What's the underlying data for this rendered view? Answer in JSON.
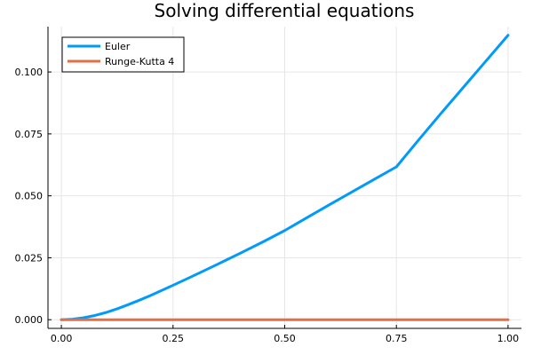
{
  "chart_data": {
    "type": "line",
    "title": "Solving differential equations",
    "xlabel": "",
    "ylabel": "",
    "xlim": [
      -0.03,
      1.03
    ],
    "ylim": [
      -0.0035,
      0.1183
    ],
    "xticks": [
      0.0,
      0.25,
      0.5,
      0.75,
      1.0
    ],
    "xtick_labels": [
      "0.00",
      "0.25",
      "0.50",
      "0.75",
      "1.00"
    ],
    "yticks": [
      0.0,
      0.025,
      0.05,
      0.075,
      0.1
    ],
    "ytick_labels": [
      "0.000",
      "0.025",
      "0.050",
      "0.075",
      "0.100"
    ],
    "grid": true,
    "legend": "top-left",
    "series": [
      {
        "name": "Euler",
        "color": "#009AFA",
        "x": [
          0.0,
          0.025,
          0.05,
          0.075,
          0.1,
          0.125,
          0.15,
          0.175,
          0.2,
          0.25,
          0.3,
          0.35,
          0.4,
          0.45,
          0.5,
          0.55,
          0.6,
          0.65,
          0.7,
          0.75,
          0.8,
          0.85,
          0.9,
          0.95,
          1.0
        ],
        "y": [
          0.0,
          0.0002,
          0.0008,
          0.0017,
          0.0029,
          0.0044,
          0.0061,
          0.0079,
          0.0098,
          0.0139,
          0.0181,
          0.0224,
          0.0268,
          0.0313,
          0.036,
          0.0412,
          0.0464,
          0.0515,
          0.0566,
          0.0617,
          0.0726,
          0.0833,
          0.0938,
          0.1043,
          0.1148
        ]
      },
      {
        "name": "Runge-Kutta 4",
        "color": "#E26F46",
        "x": [
          0.0,
          0.25,
          0.5,
          0.75,
          1.0
        ],
        "y": [
          0.0,
          0.0,
          0.0,
          0.0,
          0.0
        ]
      }
    ]
  }
}
